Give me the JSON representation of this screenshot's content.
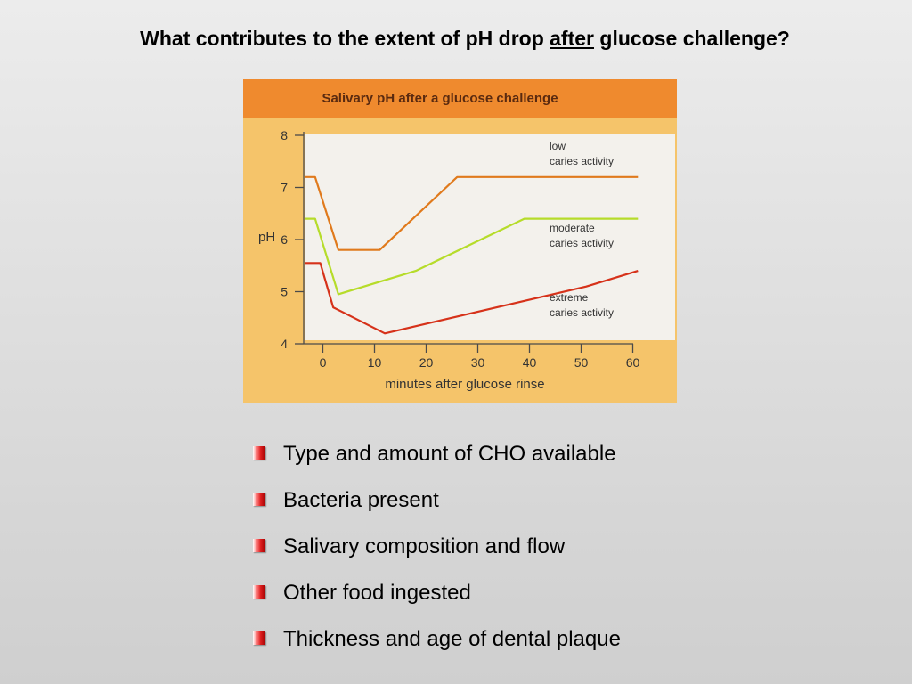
{
  "slide": {
    "title_before": "What contributes to the extent of pH drop ",
    "title_underlined": "after",
    "title_after": " glucose challenge?"
  },
  "colors": {
    "header_band": "#ef8a2e",
    "frame": "#f5c46a",
    "plot_bg": "#f3f1ec",
    "low": "#e07a1c",
    "moderate": "#b6dc2a",
    "extreme": "#d6321a"
  },
  "chart_data": {
    "type": "line",
    "title": "Salivary pH after a glucose challenge",
    "xlabel": "minutes after glucose rinse",
    "ylabel": "pH",
    "xlim": [
      -3.5,
      62
    ],
    "ylim": [
      4,
      8
    ],
    "x_ticks": [
      0,
      10,
      20,
      30,
      40,
      50,
      60
    ],
    "y_ticks": [
      4,
      5,
      6,
      7,
      8
    ],
    "series": [
      {
        "name_lines": [
          "low",
          "caries activity"
        ],
        "color": "#e07a1c",
        "points": [
          [
            -3.5,
            7.2
          ],
          [
            -1.5,
            7.2
          ],
          [
            3,
            5.8
          ],
          [
            11,
            5.8
          ],
          [
            26,
            7.2
          ],
          [
            61,
            7.2
          ]
        ]
      },
      {
        "name_lines": [
          "moderate",
          "caries activity"
        ],
        "color": "#b6dc2a",
        "points": [
          [
            -3.5,
            6.4
          ],
          [
            -1.5,
            6.4
          ],
          [
            3,
            4.95
          ],
          [
            18,
            5.4
          ],
          [
            39,
            6.4
          ],
          [
            61,
            6.4
          ]
        ]
      },
      {
        "name_lines": [
          "extreme",
          "caries activity"
        ],
        "color": "#d6321a",
        "points": [
          [
            -3.5,
            5.55
          ],
          [
            -0.5,
            5.55
          ],
          [
            2,
            4.7
          ],
          [
            12,
            4.2
          ],
          [
            51,
            5.1
          ],
          [
            61,
            5.4
          ]
        ]
      }
    ]
  },
  "bullets": [
    "Type and amount of CHO available",
    "Bacteria present",
    "Salivary composition and flow",
    "Other food ingested",
    "Thickness and age of dental plaque"
  ]
}
